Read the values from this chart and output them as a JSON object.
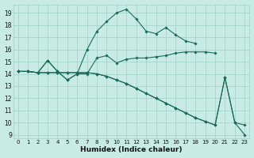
{
  "xlabel": "Humidex (Indice chaleur)",
  "bg_color": "#c8ebe4",
  "line_color": "#1a6b5a",
  "grid_color": "#a0cfc4",
  "xlim": [
    -0.5,
    23.5
  ],
  "ylim": [
    8.7,
    19.7
  ],
  "yticks": [
    9,
    10,
    11,
    12,
    13,
    14,
    15,
    16,
    17,
    18,
    19
  ],
  "xticks": [
    0,
    1,
    2,
    3,
    4,
    5,
    6,
    7,
    8,
    9,
    10,
    11,
    12,
    13,
    14,
    15,
    16,
    17,
    18,
    19,
    20,
    21,
    22,
    23
  ],
  "lines": [
    {
      "x": [
        0,
        1,
        2,
        3,
        4,
        5,
        6,
        7,
        8,
        9,
        10,
        11,
        12,
        13,
        14,
        15,
        16,
        17,
        18,
        19,
        20
      ],
      "y": [
        14.2,
        14.2,
        14.1,
        15.1,
        14.2,
        13.5,
        14.0,
        14.0,
        15.3,
        15.5,
        14.9,
        15.2,
        15.3,
        15.3,
        15.4,
        15.5,
        15.7,
        15.8,
        15.8,
        15.8,
        15.7
      ]
    },
    {
      "x": [
        0,
        1,
        2,
        3,
        4,
        5,
        6,
        7,
        8,
        9,
        10,
        11,
        12,
        13,
        14,
        15,
        16,
        17,
        18
      ],
      "y": [
        14.2,
        14.2,
        14.1,
        15.1,
        14.2,
        13.5,
        14.0,
        16.0,
        17.5,
        18.3,
        19.0,
        19.3,
        18.5,
        17.5,
        17.3,
        17.8,
        17.2,
        16.7,
        16.5
      ]
    },
    {
      "x": [
        0,
        1,
        2,
        3,
        4,
        5,
        6,
        7,
        8,
        9,
        10,
        11,
        12,
        13,
        14,
        15,
        16,
        17,
        18,
        19,
        20,
        21,
        22,
        23
      ],
      "y": [
        14.2,
        14.2,
        14.1,
        14.1,
        14.1,
        14.1,
        14.1,
        14.1,
        14.0,
        13.8,
        13.5,
        13.2,
        12.8,
        12.4,
        12.0,
        11.6,
        11.2,
        10.8,
        10.4,
        10.1,
        9.8,
        13.7,
        10.0,
        9.0
      ]
    },
    {
      "x": [
        0,
        1,
        2,
        3,
        4,
        5,
        6,
        7,
        8,
        9,
        10,
        11,
        12,
        13,
        14,
        15,
        16,
        17,
        18,
        19,
        20,
        21,
        22,
        23
      ],
      "y": [
        14.2,
        14.2,
        14.1,
        14.1,
        14.1,
        14.1,
        14.1,
        14.1,
        14.0,
        13.8,
        13.5,
        13.2,
        12.8,
        12.4,
        12.0,
        11.6,
        11.2,
        10.8,
        10.4,
        10.1,
        9.8,
        13.7,
        10.0,
        9.8
      ]
    }
  ]
}
